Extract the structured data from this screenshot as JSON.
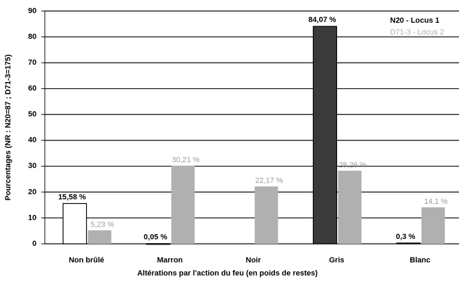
{
  "chart_data": {
    "type": "bar",
    "categories": [
      "Non brûlé",
      "Marron",
      "Noir",
      "Gris",
      "Blanc"
    ],
    "series": [
      {
        "name": "N20 - Locus 1",
        "color": "#333333",
        "colors": [
          "#ffffff",
          "#333333",
          "#333333",
          "#3a3a3a",
          "#333333"
        ],
        "values": [
          15.58,
          0.05,
          null,
          84.07,
          0.3
        ],
        "value_labels": [
          "15,58 %",
          "0,05 %",
          null,
          "84,07 %",
          "0,3 %"
        ]
      },
      {
        "name": "D71-3 - Locus 2",
        "color": "#b0b0b0",
        "values": [
          5.23,
          30.21,
          22.17,
          28.26,
          14.1
        ],
        "value_labels": [
          "5,23 %",
          "30,21 %",
          "22,17 %",
          "28,26 %",
          "14,1 %"
        ]
      }
    ],
    "ylabel": "Pourcentages (NR : N20=87 ; D71-3=175)",
    "xlabel": "Altérations par l'action du feu (en poids de restes)",
    "ylim": [
      0,
      90
    ],
    "yticks": [
      0,
      10,
      20,
      30,
      40,
      50,
      60,
      70,
      80,
      90
    ],
    "grid": true,
    "legend": "upper right"
  }
}
